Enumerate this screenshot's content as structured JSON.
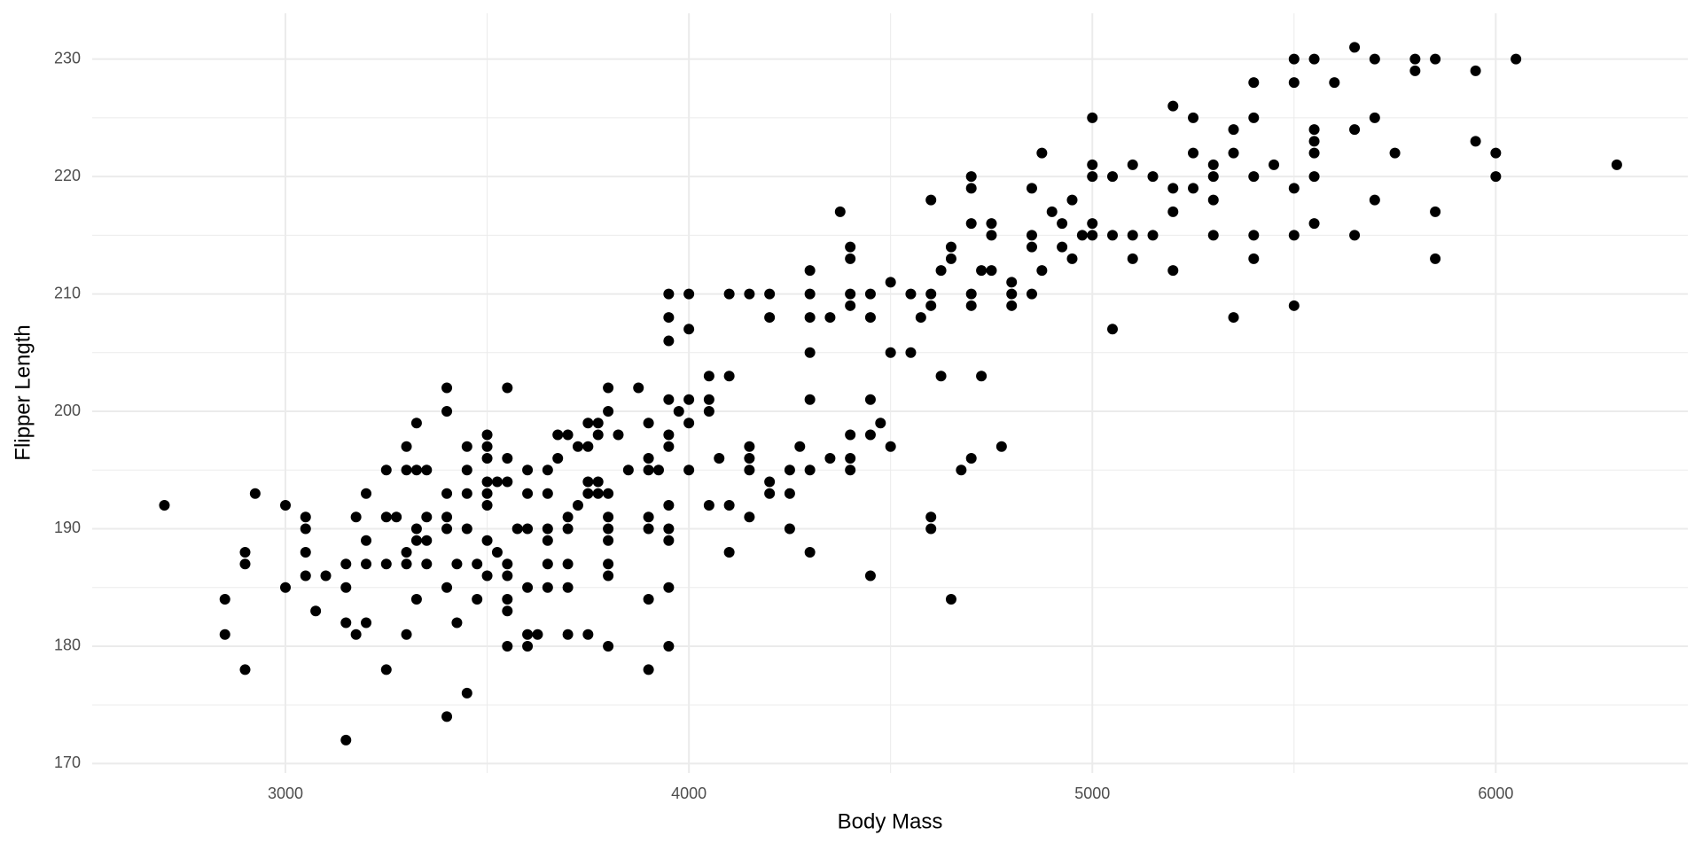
{
  "chart_data": {
    "type": "scatter",
    "x_label": "Body Mass",
    "y_label": "Flipper Length",
    "color": "#000000",
    "grid": true,
    "xlim": [
      2521,
      6476
    ],
    "ylim": [
      169.2,
      233.9
    ],
    "xticks": [
      3000,
      4000,
      5000,
      6000
    ],
    "yticks": [
      170,
      180,
      190,
      200,
      210,
      220,
      230
    ],
    "x": [
      2700,
      2850,
      2850,
      2900,
      2900,
      2900,
      2925,
      3000,
      3000,
      3050,
      3050,
      3050,
      3050,
      3075,
      3100,
      3150,
      3150,
      3150,
      3150,
      3175,
      3175,
      3200,
      3200,
      3200,
      3200,
      3250,
      3250,
      3250,
      3250,
      3275,
      3300,
      3300,
      3300,
      3300,
      3300,
      3325,
      3325,
      3325,
      3325,
      3325,
      3350,
      3350,
      3350,
      3350,
      3400,
      3400,
      3400,
      3400,
      3400,
      3400,
      3400,
      3425,
      3425,
      3450,
      3450,
      3450,
      3450,
      3450,
      3475,
      3475,
      3500,
      3500,
      3500,
      3500,
      3500,
      3500,
      3500,
      3500,
      3525,
      3525,
      3550,
      3550,
      3550,
      3550,
      3550,
      3550,
      3550,
      3550,
      3575,
      3600,
      3600,
      3600,
      3600,
      3600,
      3600,
      3625,
      3650,
      3650,
      3650,
      3650,
      3650,
      3650,
      3675,
      3675,
      3700,
      3700,
      3700,
      3700,
      3700,
      3700,
      3725,
      3725,
      3750,
      3750,
      3750,
      3750,
      3750,
      3775,
      3775,
      3775,
      3775,
      3800,
      3800,
      3800,
      3800,
      3800,
      3800,
      3800,
      3800,
      3800,
      3825,
      3850,
      3875,
      3900,
      3900,
      3900,
      3900,
      3900,
      3900,
      3900,
      3925,
      3950,
      3950,
      3950,
      3950,
      3950,
      3950,
      3950,
      3950,
      3950,
      3950,
      3950,
      3975,
      4000,
      4000,
      4000,
      4000,
      4000,
      4050,
      4050,
      4050,
      4050,
      4075,
      4100,
      4100,
      4100,
      4100,
      4150,
      4150,
      4150,
      4150,
      4150,
      4200,
      4200,
      4200,
      4200,
      4250,
      4250,
      4250,
      4275,
      4300,
      4300,
      4300,
      4300,
      4300,
      4300,
      4300,
      4350,
      4350,
      4375,
      4400,
      4400,
      4400,
      4400,
      4400,
      4400,
      4400,
      4450,
      4450,
      4450,
      4450,
      4450,
      4475,
      4500,
      4500,
      4500,
      4550,
      4550,
      4575,
      4600,
      4600,
      4600,
      4600,
      4600,
      4625,
      4625,
      4650,
      4650,
      4650,
      4675,
      4700,
      4700,
      4700,
      4700,
      4700,
      4700,
      4725,
      4725,
      4750,
      4750,
      4750,
      4775,
      4800,
      4800,
      4800,
      4850,
      4850,
      4850,
      4850,
      4875,
      4875,
      4900,
      4925,
      4925,
      4950,
      4950,
      4975,
      5000,
      5000,
      5000,
      5000,
      5000,
      5050,
      5050,
      5050,
      5100,
      5100,
      5100,
      5150,
      5150,
      5200,
      5200,
      5200,
      5200,
      5250,
      5250,
      5250,
      5300,
      5300,
      5300,
      5300,
      5350,
      5350,
      5350,
      5400,
      5400,
      5400,
      5400,
      5400,
      5450,
      5500,
      5500,
      5500,
      5500,
      5500,
      5550,
      5550,
      5550,
      5550,
      5550,
      5550,
      5600,
      5650,
      5650,
      5650,
      5700,
      5700,
      5700,
      5750,
      5800,
      5800,
      5850,
      5850,
      5850,
      5950,
      5950,
      6000,
      6000,
      6050,
      6300
    ],
    "values": [
      192,
      184,
      181,
      188,
      187,
      178,
      193,
      192,
      185,
      191,
      190,
      188,
      186,
      183,
      186,
      187,
      185,
      182,
      172,
      191,
      181,
      193,
      189,
      187,
      182,
      195,
      191,
      187,
      178,
      191,
      197,
      195,
      188,
      187,
      181,
      199,
      195,
      190,
      189,
      184,
      195,
      191,
      189,
      187,
      202,
      200,
      193,
      191,
      190,
      185,
      174,
      187,
      182,
      197,
      195,
      193,
      190,
      176,
      187,
      184,
      198,
      197,
      196,
      194,
      193,
      192,
      189,
      186,
      194,
      188,
      202,
      196,
      194,
      187,
      186,
      184,
      183,
      180,
      190,
      195,
      193,
      190,
      185,
      181,
      180,
      181,
      195,
      193,
      190,
      189,
      187,
      185,
      198,
      196,
      198,
      191,
      190,
      187,
      185,
      181,
      197,
      192,
      199,
      197,
      194,
      193,
      181,
      199,
      198,
      194,
      193,
      202,
      200,
      193,
      191,
      190,
      189,
      187,
      186,
      180,
      198,
      195,
      202,
      199,
      196,
      195,
      191,
      190,
      184,
      178,
      195,
      210,
      208,
      206,
      201,
      198,
      197,
      192,
      190,
      189,
      185,
      180,
      200,
      210,
      207,
      201,
      199,
      195,
      203,
      201,
      200,
      192,
      196,
      210,
      203,
      192,
      188,
      210,
      197,
      196,
      195,
      191,
      210,
      208,
      194,
      193,
      195,
      193,
      190,
      197,
      212,
      210,
      208,
      205,
      201,
      195,
      188,
      208,
      196,
      217,
      214,
      213,
      210,
      209,
      198,
      196,
      195,
      210,
      208,
      201,
      198,
      186,
      199,
      211,
      205,
      197,
      210,
      205,
      208,
      218,
      210,
      209,
      191,
      190,
      212,
      203,
      214,
      213,
      184,
      195,
      220,
      219,
      216,
      210,
      209,
      196,
      212,
      203,
      216,
      215,
      212,
      197,
      211,
      210,
      209,
      219,
      215,
      214,
      210,
      222,
      212,
      217,
      216,
      214,
      218,
      213,
      215,
      225,
      221,
      220,
      216,
      215,
      220,
      215,
      207,
      221,
      215,
      213,
      220,
      215,
      226,
      219,
      217,
      212,
      225,
      222,
      219,
      221,
      220,
      218,
      215,
      224,
      222,
      208,
      228,
      225,
      220,
      215,
      213,
      221,
      230,
      228,
      219,
      215,
      209,
      230,
      224,
      223,
      222,
      220,
      216,
      228,
      231,
      224,
      215,
      230,
      225,
      218,
      222,
      230,
      229,
      230,
      217,
      213,
      229,
      223,
      222,
      220,
      230,
      221
    ]
  }
}
